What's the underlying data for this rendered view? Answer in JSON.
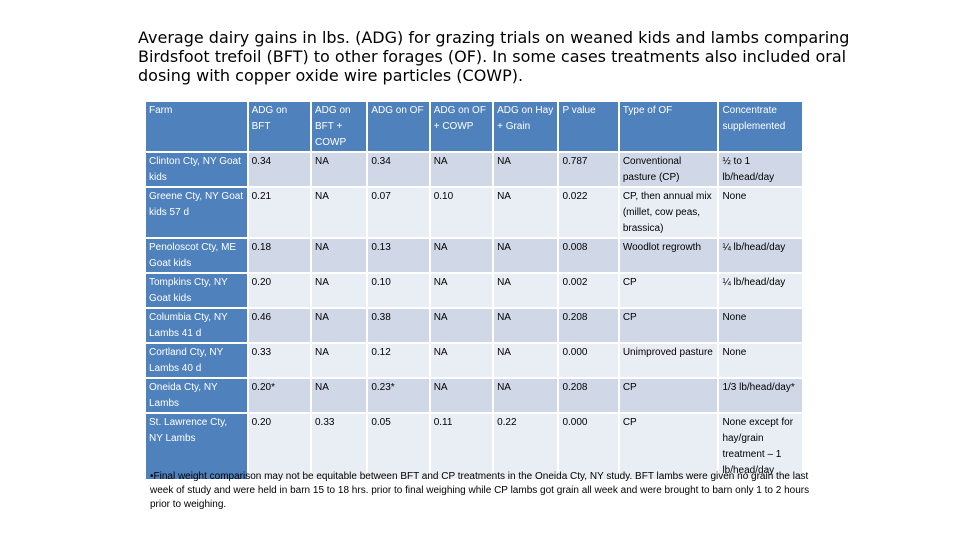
{
  "title": "Average dairy gains in lbs. (ADG) for grazing trials on weaned kids and lambs comparing Birdsfoot trefoil (BFT) to other forages (OF). In some cases treatments also included oral dosing with copper oxide wire particles (COWP).",
  "table": {
    "headers": [
      "Farm",
      "ADG on BFT",
      "ADG on BFT + COWP",
      "ADG on OF",
      "ADG on OF + COWP",
      "ADG on Hay + Grain",
      "P value",
      "Type of OF",
      "Concentrate supplemented"
    ],
    "rows": [
      [
        "Clinton Cty, NY Goat kids",
        "0.34",
        "NA",
        "0.34",
        "NA",
        "NA",
        "0.787",
        "Conventional pasture (CP)",
        "½ to 1 lb/head/day"
      ],
      [
        "Greene Cty, NY Goat kids 57 d",
        "0.21",
        "NA",
        "0.07",
        "0.10",
        "NA",
        "0.022",
        "CP, then annual mix (millet, cow peas, brassica)",
        "None"
      ],
      [
        "Penoloscot Cty, ME Goat kids",
        "0.18",
        "NA",
        "0.13",
        "NA",
        "NA",
        "0.008",
        "Woodlot regrowth",
        "¼ lb/head/day"
      ],
      [
        "Tompkins Cty, NY Goat kids",
        "0.20",
        "NA",
        "0.10",
        "NA",
        "NA",
        "0.002",
        "CP",
        "¼ lb/head/day"
      ],
      [
        "Columbia Cty, NY Lambs 41 d",
        "0.46",
        "NA",
        "0.38",
        "NA",
        "NA",
        "0.208",
        "CP",
        "None"
      ],
      [
        "Cortland Cty, NY Lambs 40 d",
        "0.33",
        "NA",
        "0.12",
        "NA",
        "NA",
        "0.000",
        "Unimproved pasture",
        "None"
      ],
      [
        "Oneida Cty, NY Lambs",
        "0.20*",
        "NA",
        "0.23*",
        "NA",
        "NA",
        "0.208",
        "CP",
        "1/3 lb/head/day*"
      ],
      [
        "St. Lawrence Cty, NY Lambs",
        "0.20",
        "0.33",
        "0.05",
        "0.11",
        "0.22",
        "0.000",
        "CP",
        "None except for hay/grain treatment – 1 lb/head/day"
      ]
    ]
  },
  "footnote": "•Final weight comparison may not be equitable between BFT and CP treatments in the Oneida Cty, NY study. BFT lambs were given no grain the last week of study and were held in barn 15 to 18 hrs. prior to final weighing while CP lambs got grain all week and were brought to barn only 1 to 2 hours prior to weighing."
}
